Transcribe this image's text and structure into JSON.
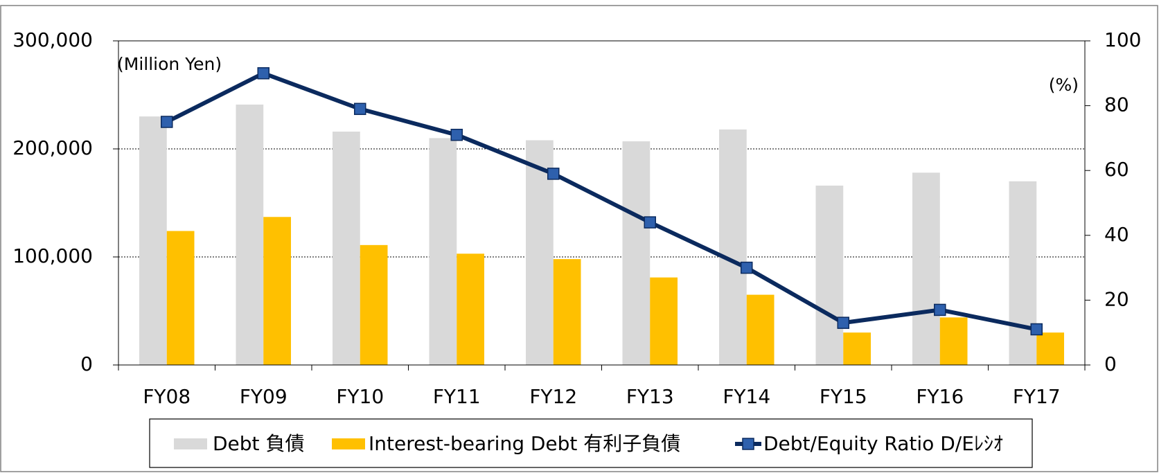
{
  "chart_data": {
    "type": "bar",
    "categories": [
      "FY08",
      "FY09",
      "FY10",
      "FY11",
      "FY12",
      "FY13",
      "FY14",
      "FY15",
      "FY16",
      "FY17"
    ],
    "series": [
      {
        "name": "Debt 負債",
        "color": "#d9d9d9",
        "values": [
          230000,
          241000,
          216000,
          210000,
          208000,
          207000,
          218000,
          166000,
          178000,
          170000
        ]
      },
      {
        "name": "Interest-bearing Debt  有利子負債",
        "color": "#ffc000",
        "values": [
          124000,
          137000,
          111000,
          103000,
          98000,
          81000,
          65000,
          30000,
          44000,
          30000
        ]
      },
      {
        "name": "Debt/Equity Ratio D/Eﾚｼｵ",
        "type": "line",
        "axis": "y2",
        "color": "#0b2a5e",
        "marker_color": "#2e60ad",
        "values": [
          75,
          90,
          79,
          71,
          59,
          44,
          30,
          13,
          17,
          11
        ]
      }
    ],
    "ylim": [
      0,
      300000
    ],
    "yticks": [
      0,
      {
        "value": 100000,
        "label": "100,000"
      },
      {
        "value": 200000,
        "label": "200,000"
      },
      {
        "value": 300000,
        "label": "300,000"
      }
    ],
    "y2lim": [
      0,
      100
    ],
    "y2ticks": [
      0,
      20,
      40,
      60,
      80,
      100
    ],
    "annotations": [
      "(Million Yen)",
      "(%)"
    ],
    "grid": true,
    "legend": "bottom"
  }
}
